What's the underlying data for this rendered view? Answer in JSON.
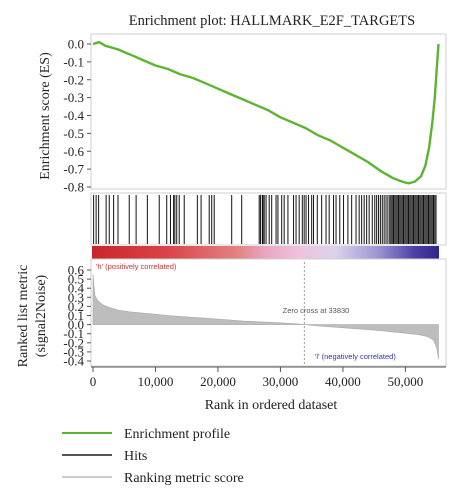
{
  "chart_data": {
    "type": "line",
    "title": "Enrichment plot: HALLMARK_E2F_TARGETS",
    "es_panel": {
      "ylabel": "Enrichment score (ES)",
      "ylim": [
        -0.8,
        0.0
      ],
      "yticks": [
        "0.0",
        "-0.1",
        "-0.2",
        "-0.3",
        "-0.4",
        "-0.5",
        "-0.6",
        "-0.7",
        "-0.8"
      ],
      "series": [
        {
          "name": "Enrichment profile",
          "color": "#5cb531",
          "x": [
            0,
            1000,
            2000,
            4000,
            6000,
            8000,
            10000,
            12000,
            14000,
            16000,
            18000,
            20000,
            22000,
            24000,
            26000,
            28000,
            30000,
            32000,
            34000,
            36000,
            38000,
            40000,
            42000,
            44000,
            46000,
            48000,
            49500,
            50500,
            51500,
            52500,
            53200,
            53800,
            54300,
            54700,
            55000,
            55300
          ],
          "y": [
            0.0,
            0.01,
            -0.01,
            -0.03,
            -0.06,
            -0.09,
            -0.12,
            -0.14,
            -0.17,
            -0.19,
            -0.22,
            -0.25,
            -0.28,
            -0.31,
            -0.34,
            -0.37,
            -0.41,
            -0.44,
            -0.47,
            -0.51,
            -0.54,
            -0.58,
            -0.62,
            -0.66,
            -0.71,
            -0.75,
            -0.77,
            -0.78,
            -0.77,
            -0.74,
            -0.68,
            -0.58,
            -0.44,
            -0.3,
            -0.15,
            0.0
          ]
        }
      ]
    },
    "hits_panel": {
      "legend": "Hits",
      "color": "#111111",
      "x": [
        100,
        500,
        900,
        2100,
        2600,
        3300,
        4000,
        5800,
        6900,
        8700,
        10600,
        11800,
        12400,
        12900,
        13100,
        13400,
        13800,
        14600,
        16700,
        17300,
        18600,
        19000,
        19400,
        22200,
        23800,
        26600,
        26800,
        27100,
        27200,
        27400,
        27700,
        28200,
        28600,
        29300,
        29600,
        30200,
        30600,
        31200,
        32100,
        32500,
        33000,
        33500,
        33800,
        34100,
        34500,
        35000,
        35300,
        35900,
        36600,
        37300,
        37800,
        38500,
        38900,
        39500,
        40100,
        40800,
        41400,
        42100,
        42600,
        43000,
        43400,
        43800,
        44200,
        44700,
        45100,
        45400,
        45700,
        46000,
        46300,
        46600,
        46900,
        47200,
        47500,
        47700,
        47900,
        48100,
        48300,
        48500,
        48700,
        48900,
        49100,
        49300,
        49500,
        49700,
        49900,
        50100,
        50300,
        50500,
        50700,
        50900,
        51100,
        51300,
        51500,
        51700,
        51900,
        52100,
        52300,
        52500,
        52700,
        52900,
        53100,
        53300,
        53500,
        53700,
        53900,
        54100,
        54300,
        54500,
        54700,
        54900
      ]
    },
    "ranked_panel": {
      "ylabel": "Ranked list metric (signal2Noise)",
      "ylim": [
        -0.4,
        0.6
      ],
      "yticks": [
        "0.6",
        "0.5",
        "0.4",
        "0.3",
        "0.2",
        "0.1",
        "0.0",
        "-0.1",
        "-0.2",
        "-0.3",
        "-0.4"
      ],
      "series": [
        {
          "name": "Ranking metric score",
          "color": "#bdbdbd",
          "x": [
            0,
            300,
            800,
            1500,
            2500,
            4000,
            6000,
            9000,
            12000,
            15000,
            18000,
            21000,
            24000,
            27000,
            30000,
            33000,
            33830,
            36000,
            39000,
            42000,
            45000,
            48000,
            50000,
            52000,
            53500,
            54500,
            55000,
            55300
          ],
          "y": [
            0.55,
            0.32,
            0.26,
            0.22,
            0.19,
            0.16,
            0.14,
            0.12,
            0.1,
            0.085,
            0.07,
            0.055,
            0.04,
            0.03,
            0.02,
            0.005,
            0.0,
            -0.015,
            -0.03,
            -0.045,
            -0.06,
            -0.08,
            -0.095,
            -0.11,
            -0.13,
            -0.17,
            -0.25,
            -0.38
          ]
        }
      ],
      "annotations": {
        "zero_cross": "Zero cross at 33830",
        "positive": "'h' (positively correlated)",
        "negative": "'l' (negatively correlated)"
      },
      "zero_cross_x": 33830
    },
    "xlabel": "Rank in ordered dataset",
    "xlim": [
      0,
      56500
    ],
    "xticks": [
      0,
      10000,
      20000,
      30000,
      40000,
      50000
    ],
    "xtick_labels": [
      "0",
      "10,000",
      "20,000",
      "30,000",
      "40,000",
      "50,000"
    ],
    "legend": [
      {
        "label": "Enrichment profile",
        "color": "#5cb531"
      },
      {
        "label": "Hits",
        "color": "#555555"
      },
      {
        "label": "Ranking metric score",
        "color": "#cccccc"
      }
    ]
  }
}
